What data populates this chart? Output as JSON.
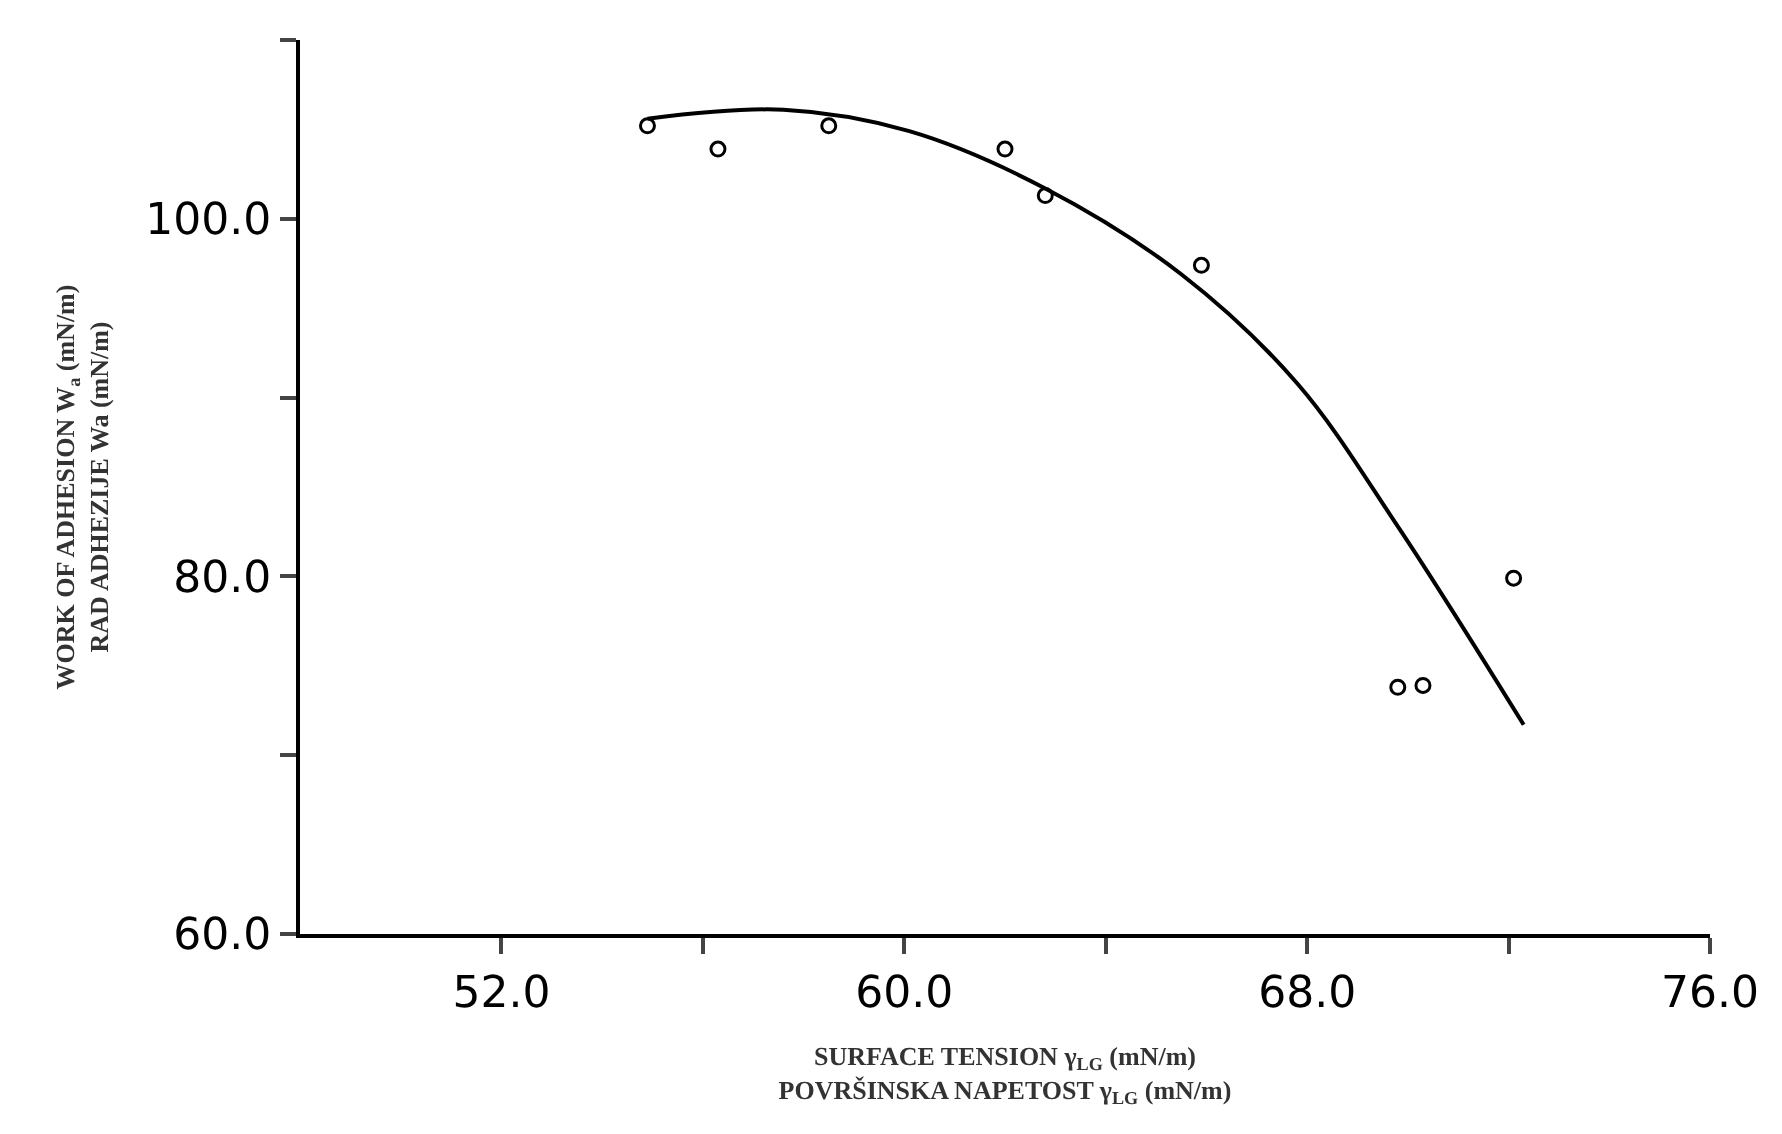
{
  "chart_data": {
    "type": "scatter",
    "xlabel": "SURFACE TENSION γ$_{LG}$ (mN/m)\nPOVRŠINSKA NAPETOST γ$_{LG}$ (mN/m)",
    "ylabel": "WORK OF ADHESION W$_{a}$ (mN/m)\nRAD ADHEZIJE Wa (mN/m)",
    "xlim": [
      48,
      76
    ],
    "ylim": [
      60,
      110
    ],
    "xticks": [
      {
        "value": 52,
        "label": "52.0"
      },
      {
        "value": 56,
        "label": null
      },
      {
        "value": 60,
        "label": "60.0"
      },
      {
        "value": 64,
        "label": null
      },
      {
        "value": 68,
        "label": "68.0"
      },
      {
        "value": 72,
        "label": null
      },
      {
        "value": 76,
        "label": "76.0"
      }
    ],
    "yticks": [
      {
        "value": 60,
        "label": "60.0"
      },
      {
        "value": 70,
        "label": null
      },
      {
        "value": 80,
        "label": "80.0"
      },
      {
        "value": 90,
        "label": null
      },
      {
        "value": 100,
        "label": "100.0"
      },
      {
        "value": 110,
        "label": null
      }
    ],
    "legend": false,
    "series": [
      {
        "marker": "circle",
        "color": "#000000",
        "x": [
          54.9,
          56.3,
          58.5,
          62.0,
          62.8,
          65.9,
          69.8,
          70.3,
          72.1
        ],
        "values": [
          105.2,
          103.9,
          105.2,
          103.9,
          101.3,
          97.4,
          73.8,
          73.9,
          79.9
        ]
      },
      {
        "type": "line",
        "marker": "none",
        "line_style": "solid",
        "color": "#000000",
        "x": [
          54.9,
          57.6,
          60.1,
          62.8,
          65.5,
          67.8,
          69.8,
          72.3
        ],
        "values": [
          105.6,
          106.1,
          104.9,
          101.7,
          96.9,
          90.8,
          82.8,
          71.7
        ]
      }
    ]
  }
}
